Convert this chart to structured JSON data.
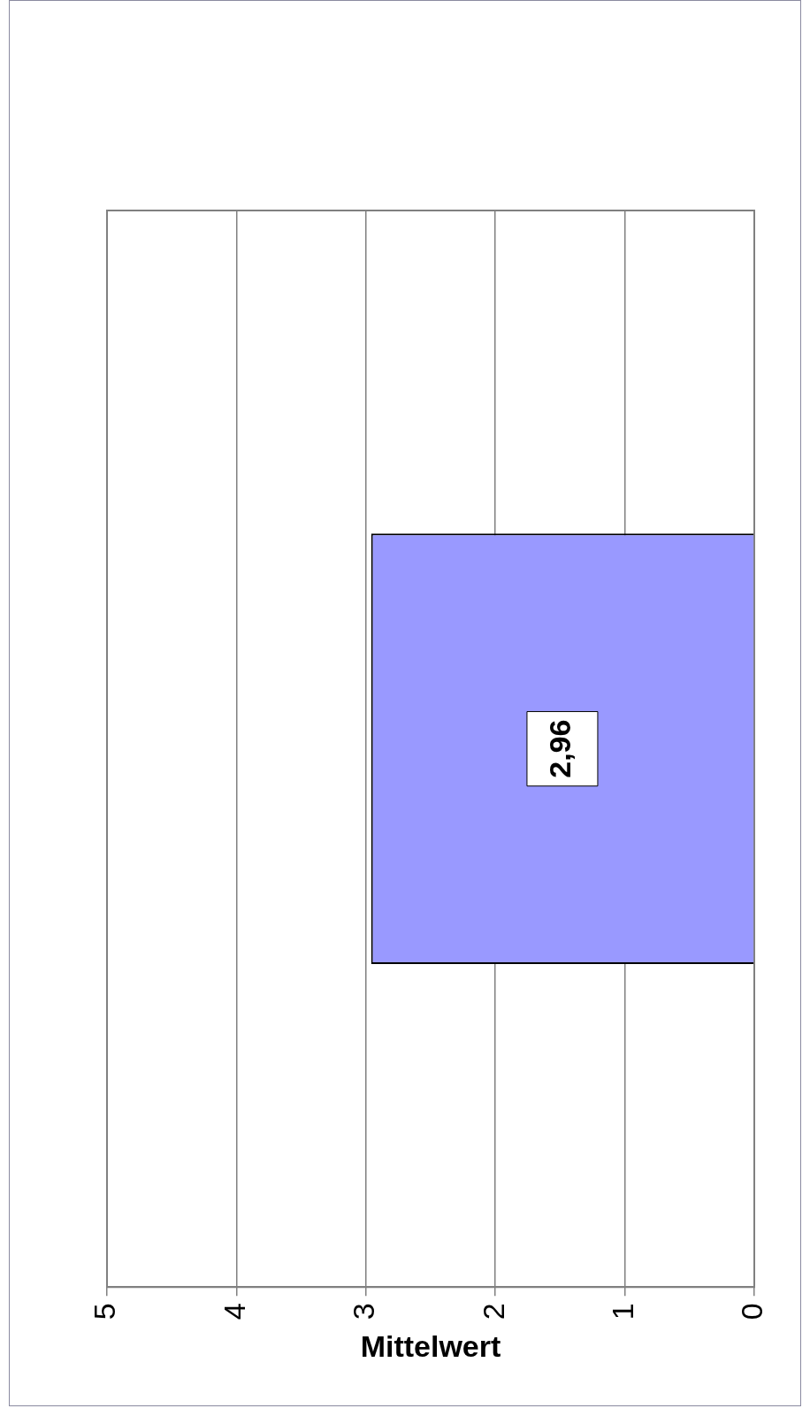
{
  "chart_data": {
    "type": "bar",
    "orientation": "horizontal",
    "xlabel": "Mittelwert",
    "categories": [
      null
    ],
    "values": [
      2.96
    ],
    "color": "#9999ff",
    "value_labels": [
      "2,96"
    ],
    "xlim": [
      5,
      0
    ],
    "xticks": [
      5,
      4,
      3,
      2,
      1,
      0
    ],
    "grid": "x",
    "legend": false
  }
}
